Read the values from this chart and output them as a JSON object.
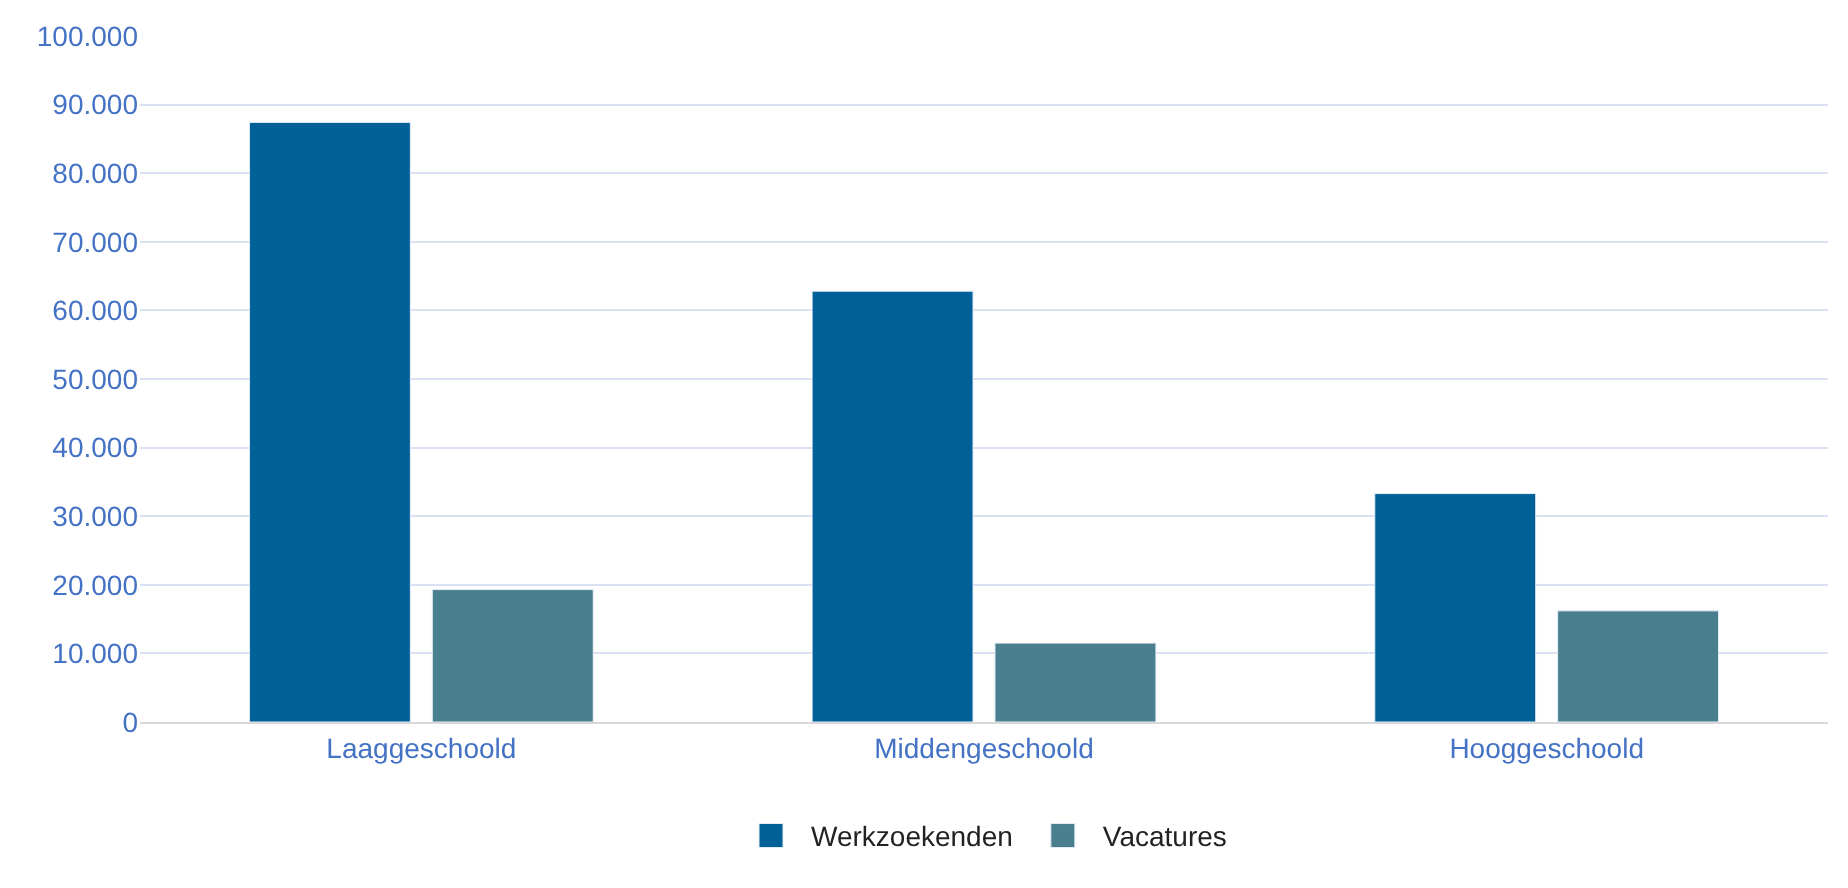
{
  "chart_data": {
    "type": "bar",
    "categories": [
      "Laaggeschoold",
      "Middengeschoold",
      "Hooggeschoold"
    ],
    "series": [
      {
        "name": "Werkzoekenden",
        "color": "#006098",
        "values": [
          87400,
          62800,
          33300
        ]
      },
      {
        "name": "Vacatures",
        "color": "#4a7f8f",
        "values": [
          19300,
          11500,
          16200
        ]
      }
    ],
    "ylim": [
      0,
      100000
    ],
    "yticks": [
      0,
      {
        "value": 10000,
        "label": "10.000"
      },
      {
        "value": 20000,
        "label": "20.000"
      },
      {
        "value": 30000,
        "label": "30.000"
      },
      {
        "value": 40000,
        "label": "40.000"
      },
      {
        "value": 50000,
        "label": "50.000"
      },
      {
        "value": 60000,
        "label": "60.000"
      },
      {
        "value": 70000,
        "label": "70.000"
      },
      {
        "value": 80000,
        "label": "80.000"
      },
      {
        "value": 90000,
        "label": "90.000"
      },
      {
        "value": 100000,
        "label": "100.000"
      }
    ],
    "grid": "y",
    "legend": "bottom"
  }
}
